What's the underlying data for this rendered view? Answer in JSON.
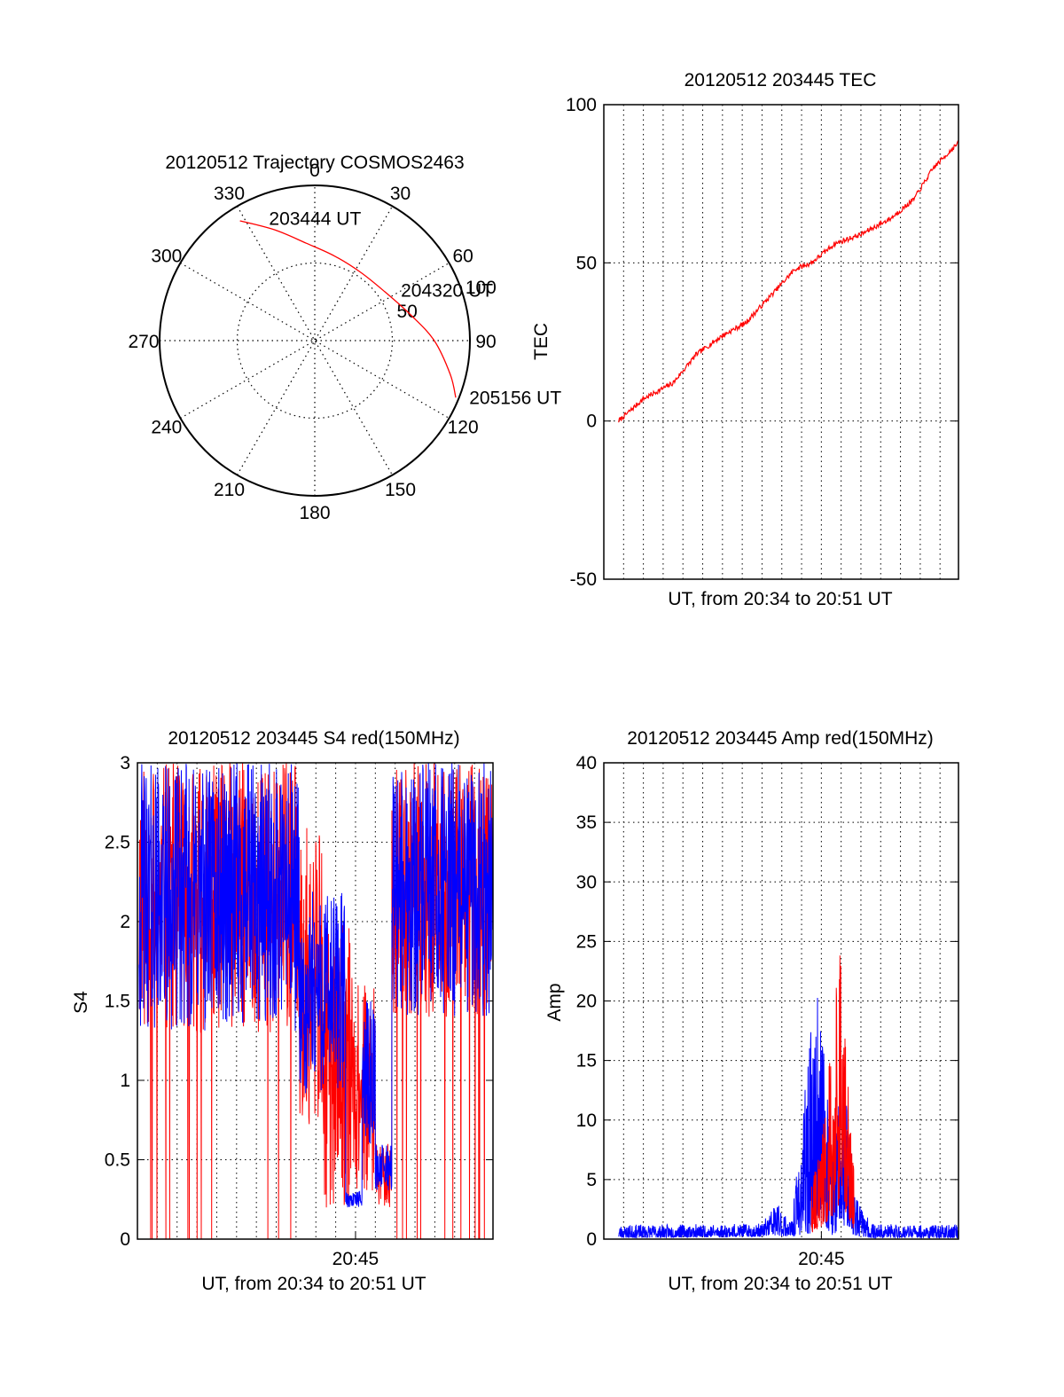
{
  "chart_data": [
    {
      "type": "polar",
      "title": "20120512 Trajectory COSMOS2463",
      "angle_labels": [
        "0",
        "30",
        "60",
        "90",
        "120",
        "150",
        "180",
        "210",
        "240",
        "270",
        "300",
        "330"
      ],
      "radius_labels": [
        "50",
        "100"
      ],
      "rlim": [
        0,
        100
      ],
      "grid": true,
      "series": [
        {
          "color": "#ff0000",
          "points": [
            {
              "az": 328,
              "r": 91
            },
            {
              "az": 340,
              "r": 76
            },
            {
              "az": 355,
              "r": 63
            },
            {
              "az": 13,
              "r": 56
            },
            {
              "az": 34,
              "r": 53
            },
            {
              "az": 55,
              "r": 55
            },
            {
              "az": 75,
              "r": 64
            },
            {
              "az": 90,
              "r": 77
            },
            {
              "az": 104,
              "r": 90
            },
            {
              "az": 112,
              "r": 98
            }
          ]
        }
      ],
      "annotations": [
        {
          "text": "203444 UT",
          "az": 335,
          "r": 86
        },
        {
          "text": "204320 UT",
          "az": 57,
          "r": 58
        },
        {
          "text": "205156 UT",
          "az": 112,
          "r": 100
        }
      ]
    },
    {
      "type": "line",
      "title": "20120512 203445 TEC",
      "xlabel": "UT, from 20:34 to 20:51 UT",
      "ylabel": "TEC",
      "xlim": [
        "20:34:00",
        "20:51:56"
      ],
      "ylim": [
        -50,
        100
      ],
      "yticks": [
        "100",
        "50",
        "0",
        "-50"
      ],
      "xticks": [],
      "grid": true,
      "series": [
        {
          "color": "#ff0000",
          "x": [
            "20:34:45",
            "20:36:00",
            "20:37:30",
            "20:38:40",
            "20:40:00",
            "20:41:10",
            "20:42:30",
            "20:43:40",
            "20:44:30",
            "20:45:40",
            "20:47:00",
            "20:48:30",
            "20:49:40",
            "20:50:40",
            "20:51:56"
          ],
          "y": [
            0,
            7,
            12,
            21,
            27,
            31,
            40,
            48,
            50,
            56,
            59,
            64,
            70,
            80,
            88
          ]
        }
      ]
    },
    {
      "type": "line",
      "title": "20120512 203445 S4 red(150MHz)",
      "xlabel": "UT, from 20:34 to 20:51 UT",
      "ylabel": "S4",
      "xlim": [
        "20:34:00",
        "20:51:56"
      ],
      "ylim": [
        0,
        3
      ],
      "yticks": [
        "0",
        "0.5",
        "1",
        "1.5",
        "2",
        "2.5",
        "3"
      ],
      "xticks": [
        "20:45"
      ],
      "grid": true,
      "series": [
        {
          "color": "#ff0000",
          "x_start": "20:34:05",
          "x_end": "20:51:56",
          "segments": [
            {
              "from": "20:34:05",
              "to": "20:42:10",
              "y_low": 1.3,
              "y_high": 3.0
            },
            {
              "from": "20:42:10",
              "to": "20:43:20",
              "y_low": 0.7,
              "y_high": 2.6
            },
            {
              "from": "20:43:20",
              "to": "20:44:50",
              "y_low": 0.2,
              "y_high": 2.0
            },
            {
              "from": "20:44:50",
              "to": "20:46:00",
              "y_low": 0.3,
              "y_high": 1.6
            },
            {
              "from": "20:46:00",
              "to": "20:46:50",
              "y_low": 0.2,
              "y_high": 0.6
            },
            {
              "from": "20:46:50",
              "to": "20:51:56",
              "y_low": 1.4,
              "y_high": 3.0
            }
          ]
        },
        {
          "color": "#0000ff",
          "x_start": "20:34:05",
          "x_end": "20:51:56",
          "segments": [
            {
              "from": "20:34:05",
              "to": "20:42:10",
              "y_low": 1.3,
              "y_high": 3.0
            },
            {
              "from": "20:42:10",
              "to": "20:42:40",
              "y_low": 0.85,
              "y_high": 1.9
            },
            {
              "from": "20:42:40",
              "to": "20:44:30",
              "y_low": 0.9,
              "y_high": 2.2
            },
            {
              "from": "20:44:30",
              "to": "20:45:20",
              "y_low": 0.2,
              "y_high": 0.3
            },
            {
              "from": "20:45:20",
              "to": "20:46:00",
              "y_low": 0.6,
              "y_high": 1.5
            },
            {
              "from": "20:46:00",
              "to": "20:46:50",
              "y_low": 0.3,
              "y_high": 0.6
            },
            {
              "from": "20:46:50",
              "to": "20:51:56",
              "y_low": 1.4,
              "y_high": 3.0
            }
          ]
        }
      ]
    },
    {
      "type": "line",
      "title": "20120512 203445 Amp red(150MHz)",
      "xlabel": "UT, from 20:34 to 20:51 UT",
      "ylabel": "Amp",
      "xlim": [
        "20:34:00",
        "20:51:56"
      ],
      "ylim": [
        0,
        40
      ],
      "yticks": [
        "0",
        "5",
        "10",
        "15",
        "20",
        "25",
        "30",
        "35",
        "40"
      ],
      "xticks": [
        "20:45"
      ],
      "grid": true,
      "series": [
        {
          "color": "#0000ff",
          "envelope": [
            {
              "x": "20:34:45",
              "low": 0.1,
              "high": 1.2
            },
            {
              "x": "20:42:00",
              "low": 0.2,
              "high": 1.3
            },
            {
              "x": "20:42:40",
              "low": 0.3,
              "high": 3.2
            },
            {
              "x": "20:43:30",
              "low": 0.2,
              "high": 1.5
            },
            {
              "x": "20:44:30",
              "low": 0.5,
              "high": 18
            },
            {
              "x": "20:44:55",
              "low": 2,
              "high": 22
            },
            {
              "x": "20:45:30",
              "low": 0.3,
              "high": 8
            },
            {
              "x": "20:46:10",
              "low": 1,
              "high": 15
            },
            {
              "x": "20:46:40",
              "low": 0.3,
              "high": 4
            },
            {
              "x": "20:47:30",
              "low": 0.1,
              "high": 1.3
            },
            {
              "x": "20:51:56",
              "low": 0.1,
              "high": 1.2
            }
          ]
        },
        {
          "color": "#ff0000",
          "envelope": [
            {
              "x": "20:44:30",
              "low": 0.5,
              "high": 5
            },
            {
              "x": "20:45:00",
              "low": 1,
              "high": 8
            },
            {
              "x": "20:45:40",
              "low": 2,
              "high": 20
            },
            {
              "x": "20:45:55",
              "low": 3,
              "high": 26
            },
            {
              "x": "20:46:20",
              "low": 2,
              "high": 14
            },
            {
              "x": "20:46:40",
              "low": 0.5,
              "high": 5
            }
          ]
        }
      ]
    }
  ]
}
